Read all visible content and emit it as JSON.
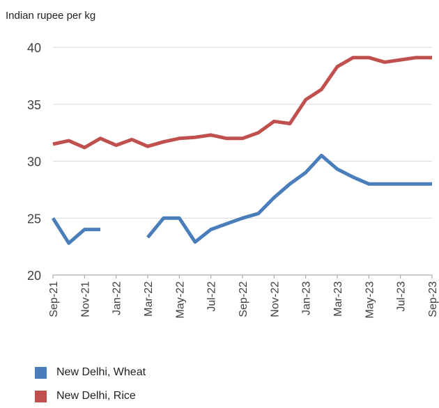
{
  "chart_data": {
    "type": "line",
    "ylabel": "Indian rupee per kg",
    "ylim": [
      20,
      40
    ],
    "yticks": [
      20,
      25,
      30,
      35,
      40
    ],
    "grid": "horizontal",
    "legend_position": "bottom",
    "x": [
      "Sep-21",
      "Oct-21",
      "Nov-21",
      "Dec-21",
      "Jan-22",
      "Feb-22",
      "Mar-22",
      "Apr-22",
      "May-22",
      "Jun-22",
      "Jul-22",
      "Aug-22",
      "Sep-22",
      "Oct-22",
      "Nov-22",
      "Dec-22",
      "Jan-23",
      "Feb-23",
      "Mar-23",
      "Apr-23",
      "May-23",
      "Jun-23",
      "Jul-23",
      "Aug-23",
      "Sep-23"
    ],
    "x_tick_labels": [
      "Sep-21",
      "Nov-21",
      "Jan-22",
      "Mar-22",
      "May-22",
      "Jul-22",
      "Sep-22",
      "Nov-22",
      "Jan-23",
      "Mar-23",
      "May-23",
      "Jul-23",
      "Sep-23"
    ],
    "series": [
      {
        "name": "New Delhi, Wheat",
        "color": "#4a7ebb",
        "values": [
          25.0,
          22.8,
          24.0,
          24.0,
          null,
          null,
          23.3,
          25.0,
          25.0,
          22.9,
          24.0,
          24.5,
          25.0,
          25.4,
          26.8,
          28.0,
          29.0,
          30.5,
          29.3,
          28.6,
          28.0,
          28.0,
          28.0,
          28.0,
          28.0
        ]
      },
      {
        "name": "New Delhi, Rice",
        "color": "#c0504d",
        "values": [
          31.5,
          31.8,
          31.2,
          32.0,
          31.4,
          31.9,
          31.3,
          31.7,
          32.0,
          32.1,
          32.3,
          32.0,
          32.0,
          32.5,
          33.5,
          33.3,
          35.4,
          36.3,
          38.3,
          39.1,
          39.1,
          38.7,
          38.9,
          39.1,
          39.1
        ]
      }
    ]
  }
}
